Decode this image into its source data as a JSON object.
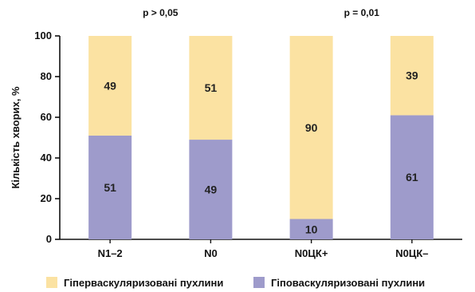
{
  "chart_data": {
    "type": "bar",
    "stacked": true,
    "categories": [
      "N1–2",
      "N0",
      "N0ЦК+",
      "N0ЦК–"
    ],
    "series": [
      {
        "name": "Гіповаскуляризовані пухлини",
        "values": [
          51,
          49,
          10,
          61
        ],
        "color": "#9e9bcb"
      },
      {
        "name": "Гіперваскуляризовані пухлини",
        "values": [
          49,
          51,
          90,
          39
        ],
        "color": "#fbe2a2"
      }
    ],
    "ylabel": "Кількість хворих, %",
    "ylim": [
      0,
      100
    ],
    "yticks": [
      0,
      20,
      40,
      60,
      80,
      100
    ],
    "grid": false,
    "legend_position": "bottom",
    "annotations": [
      "p > 0,05",
      "p = 0,01"
    ]
  },
  "legend": {
    "hyper": "Гіперваскуляризовані пухлини",
    "hypo": "Гіповаскуляризовані пухлини"
  }
}
